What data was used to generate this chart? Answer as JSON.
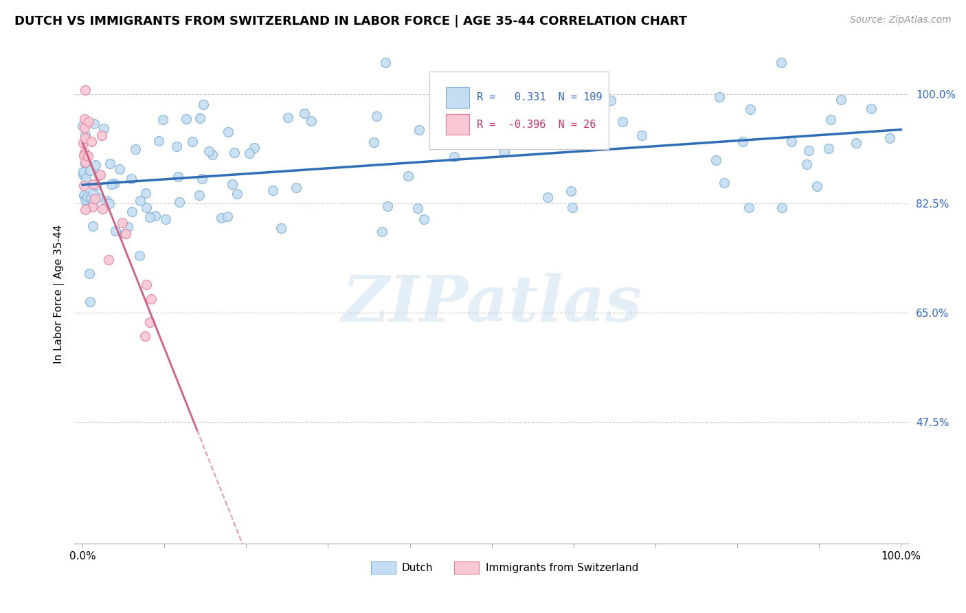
{
  "title": "DUTCH VS IMMIGRANTS FROM SWITZERLAND IN LABOR FORCE | AGE 35-44 CORRELATION CHART",
  "source": "Source: ZipAtlas.com",
  "ylabel": "In Labor Force | Age 35-44",
  "blue_R": 0.331,
  "blue_N": 109,
  "pink_R": -0.396,
  "pink_N": 26,
  "blue_color": "#c5ddf2",
  "blue_edge_color": "#7aaed6",
  "pink_color": "#f9c8d4",
  "pink_edge_color": "#e87a9a",
  "blue_line_color": "#2e6eb5",
  "pink_line_color": "#d45c80",
  "marker_size": 100,
  "xlim": [
    -0.01,
    1.01
  ],
  "ylim": [
    0.28,
    1.08
  ],
  "yticks": [
    0.475,
    0.65,
    0.825,
    1.0
  ],
  "ytick_labels": [
    "47.5%",
    "65.0%",
    "82.5%",
    "100.0%"
  ],
  "xtick_labels": [
    "0.0%",
    "100.0%"
  ],
  "legend_blue_label": "Dutch",
  "legend_pink_label": "Immigrants from Switzerland",
  "title_fontsize": 13,
  "source_fontsize": 10,
  "axis_label_fontsize": 11,
  "legend_fontsize": 11,
  "tick_label_color": "#3366cc",
  "grid_color": "#cccccc",
  "watermark": "ZIPatlas"
}
